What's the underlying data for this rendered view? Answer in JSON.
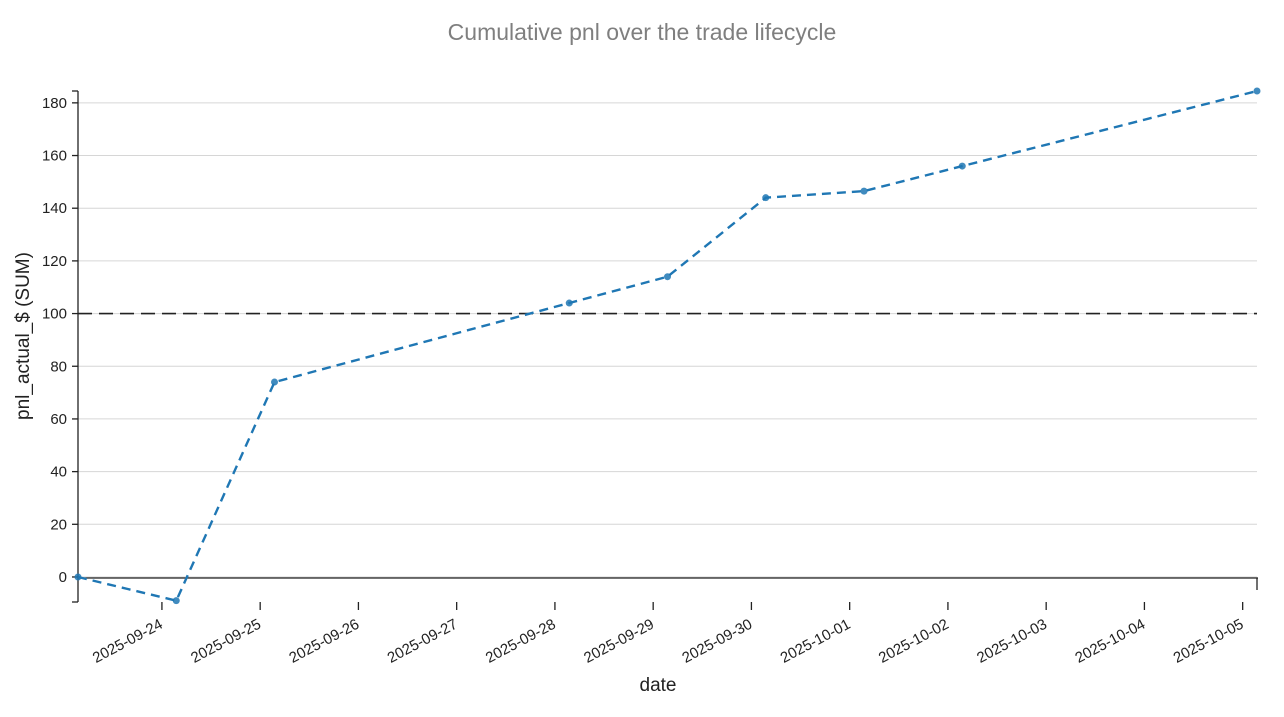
{
  "chart_data": {
    "type": "line",
    "title": "Cumulative pnl over the trade lifecycle",
    "xlabel": "date",
    "ylabel": "pnl_actual_$ (SUM)",
    "x_ticks": [
      "2025-09-24",
      "2025-09-25",
      "2025-09-26",
      "2025-09-27",
      "2025-09-28",
      "2025-09-29",
      "2025-09-30",
      "2025-10-01",
      "2025-10-02",
      "2025-10-03",
      "2025-10-04",
      "2025-10-05"
    ],
    "y_ticks": [
      0,
      20,
      40,
      60,
      80,
      100,
      120,
      140,
      160,
      180
    ],
    "ylim": [
      -9.5,
      184.5
    ],
    "xlim": [
      "2025-09-23 03:30",
      "2025-10-05 03:30"
    ],
    "grid": "horizontal",
    "reference_line": {
      "y": 100,
      "style": "dashed",
      "color": "#222222"
    },
    "series": [
      {
        "color": "#1f77b4",
        "line_style": "dashed",
        "points": [
          {
            "x": "2025-09-23 03:30",
            "y": 0
          },
          {
            "x": "2025-09-24 03:30",
            "y": -9
          },
          {
            "x": "2025-09-25 03:30",
            "y": 74
          },
          {
            "x": "2025-09-28 03:30",
            "y": 104
          },
          {
            "x": "2025-09-29 03:30",
            "y": 114
          },
          {
            "x": "2025-09-30 03:30",
            "y": 144
          },
          {
            "x": "2025-10-01 03:30",
            "y": 146.5
          },
          {
            "x": "2025-10-02 03:30",
            "y": 156
          },
          {
            "x": "2025-10-05 03:30",
            "y": 184.5
          }
        ]
      }
    ]
  }
}
